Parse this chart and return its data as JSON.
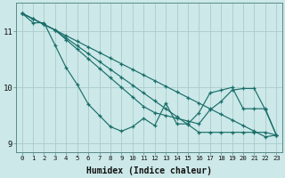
{
  "xlabel": "Humidex (Indice chaleur)",
  "bg_color": "#cce8e8",
  "grid_color": "#aacccc",
  "line_color": "#1a6e6a",
  "xlim": [
    -0.5,
    23.5
  ],
  "ylim": [
    8.85,
    11.5
  ],
  "yticks": [
    9,
    10,
    11
  ],
  "xticks": [
    0,
    1,
    2,
    3,
    4,
    5,
    6,
    7,
    8,
    9,
    10,
    11,
    12,
    13,
    14,
    15,
    16,
    17,
    18,
    19,
    20,
    21,
    22,
    23
  ],
  "series_straight1": [
    11.32,
    11.22,
    11.12,
    11.02,
    10.92,
    10.82,
    10.72,
    10.62,
    10.52,
    10.42,
    10.32,
    10.22,
    10.12,
    10.02,
    9.92,
    9.82,
    9.72,
    9.62,
    9.52,
    9.42,
    9.32,
    9.22,
    9.12,
    9.15
  ],
  "series_straight2": [
    11.32,
    11.22,
    11.12,
    11.02,
    10.88,
    10.74,
    10.6,
    10.46,
    10.32,
    10.18,
    10.04,
    9.9,
    9.76,
    9.62,
    9.48,
    9.34,
    9.2,
    9.2,
    9.2,
    9.2,
    9.2,
    9.2,
    9.2,
    9.15
  ],
  "series_straight3": [
    11.32,
    11.22,
    11.12,
    11.02,
    10.85,
    10.68,
    10.51,
    10.34,
    10.17,
    10.0,
    9.83,
    9.66,
    9.55,
    9.5,
    9.45,
    9.4,
    9.35,
    9.6,
    9.75,
    9.95,
    9.98,
    9.98,
    9.6,
    9.15
  ],
  "series_wavy": [
    11.32,
    11.15,
    11.15,
    10.75,
    10.35,
    10.05,
    9.7,
    9.5,
    9.3,
    9.22,
    9.3,
    9.45,
    9.32,
    9.72,
    9.35,
    9.35,
    9.55,
    9.9,
    9.95,
    10.0,
    9.62,
    9.62,
    9.62,
    9.15
  ]
}
